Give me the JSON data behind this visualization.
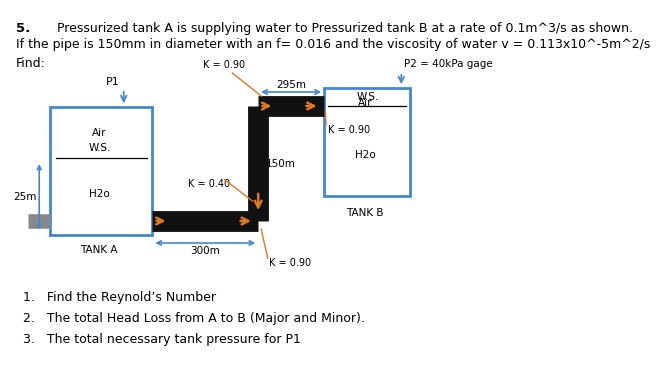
{
  "title_num": "5.",
  "title_text": "Pressurized tank A is supplying water to Pressurized tank B at a rate of 0.1m^3/s as shown.",
  "subtitle": "If the pipe is 150mm in diameter with an f= 0.016 and the viscosity of water v = 0.113x10^-5m^2/s",
  "find_label": "Find:",
  "questions": [
    "1.   Find the Reynold’s Number",
    "2.   The total Head Loss from A to B (Major and Minor).",
    "3.   The total necessary tank pressure for P1"
  ],
  "k_top": "K = 0.90",
  "k_bend": "K = 0.40",
  "k_entry_b": "K = 0.90",
  "k_bottom_elbow": "K = 0.90",
  "p1_label": "P1",
  "p2_label": "P2 = 40kPa gage",
  "dim_295": "295m",
  "dim_150": "150m",
  "dim_300": "300m",
  "dim_25": "25m",
  "label_air_a": "Air",
  "label_ws_a": "W.S.",
  "label_h2o_a": "H2o",
  "label_tank_a": "TANK A",
  "label_air_b": "Air",
  "label_ws_b": "W.S.",
  "label_h2o_b": "H2o",
  "label_tank_b": "TANK B",
  "pipe_color": "#111111",
  "tank_edge_color": "#4488cc",
  "orange_color": "#e07820",
  "blue_dim_color": "#4488cc",
  "bg_color": "#ffffff"
}
